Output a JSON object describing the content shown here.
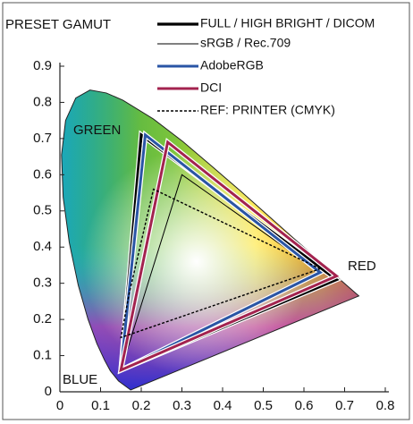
{
  "chart_data": {
    "type": "line",
    "title": "PRESET GAMUT",
    "xlim": [
      0,
      0.8
    ],
    "ylim": [
      0,
      0.9
    ],
    "xticks": [
      0,
      0.1,
      0.2,
      0.3,
      0.4,
      0.5,
      0.6,
      0.7,
      0.8
    ],
    "yticks": [
      0,
      0.1,
      0.2,
      0.3,
      0.4,
      0.5,
      0.6,
      0.7,
      0.8,
      0.9
    ],
    "grid": false,
    "legend": "top",
    "annotations": [
      "GREEN",
      "RED",
      "BLUE"
    ],
    "locus": {
      "x": [
        0.1741,
        0.144,
        0.124,
        0.11,
        0.091,
        0.069,
        0.045,
        0.023,
        0.008,
        0.004,
        0.014,
        0.039,
        0.074,
        0.114,
        0.155,
        0.23,
        0.302,
        0.373,
        0.444,
        0.512,
        0.575,
        0.627,
        0.691,
        0.735
      ],
      "y": [
        0.005,
        0.03,
        0.058,
        0.087,
        0.133,
        0.201,
        0.295,
        0.413,
        0.538,
        0.655,
        0.75,
        0.812,
        0.834,
        0.826,
        0.806,
        0.754,
        0.692,
        0.624,
        0.555,
        0.487,
        0.424,
        0.373,
        0.308,
        0.265
      ]
    },
    "series": [
      {
        "name": "FULL / HIGH BRIGHT / DICOM",
        "color": "#000000",
        "width": 3.2,
        "x": [
          0.68,
          0.2,
          0.15
        ],
        "y": [
          0.31,
          0.71,
          0.06
        ]
      },
      {
        "name": "sRGB / Rec.709",
        "color": "#000000",
        "width": 1,
        "x": [
          0.64,
          0.3,
          0.15
        ],
        "y": [
          0.33,
          0.6,
          0.06
        ]
      },
      {
        "name": "AdobeRGB",
        "color": "#2a55a5",
        "width": 3,
        "x": [
          0.64,
          0.21,
          0.15
        ],
        "y": [
          0.33,
          0.71,
          0.06
        ]
      },
      {
        "name": "DCI",
        "color": "#a3234f",
        "width": 3,
        "x": [
          0.68,
          0.265,
          0.15
        ],
        "y": [
          0.32,
          0.69,
          0.06
        ]
      },
      {
        "name": "REF: PRINTER (CMYK)",
        "color": "#000000",
        "width": 1.4,
        "dash": true,
        "x": [
          0.64,
          0.23,
          0.17,
          0.15
        ],
        "y": [
          0.34,
          0.56,
          0.27,
          0.15
        ]
      }
    ]
  }
}
